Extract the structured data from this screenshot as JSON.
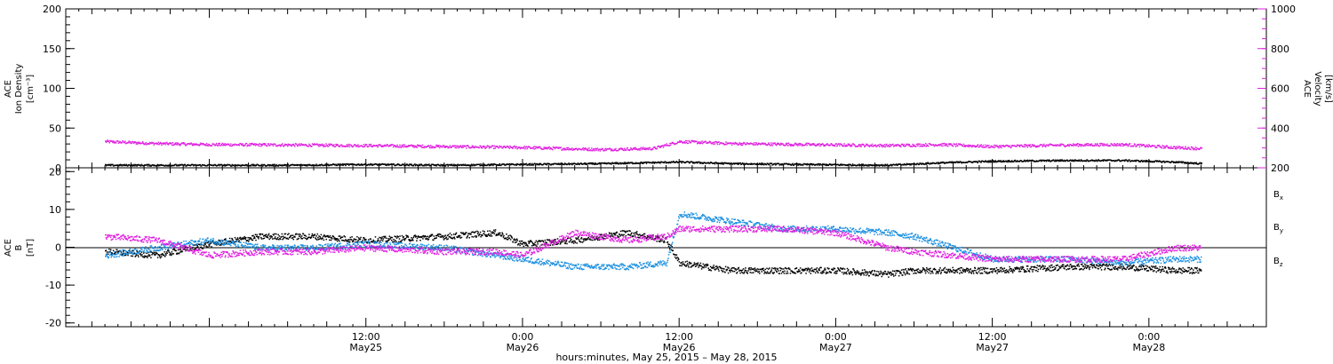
{
  "chart_data": [
    {
      "type": "scatter",
      "panel": "top",
      "ylabel_left": [
        "ACE",
        "Ion Density",
        "[cm⁻³]"
      ],
      "ylabel_right": [
        "ACE",
        "Velocity",
        "[km/s]"
      ],
      "left_ticks": [
        "0",
        "50",
        "100",
        "150",
        "200"
      ],
      "right_ticks": [
        "200",
        "400",
        "600",
        "800",
        "1000"
      ],
      "ylim_left": [
        0,
        200
      ],
      "ylim_right": [
        200,
        1000
      ],
      "colors": {
        "density": "#000000",
        "velocity": "#e020e0"
      },
      "series": [
        {
          "name": "density",
          "axis": "left",
          "x": [
            -8,
            0,
            6,
            12,
            18,
            24,
            30,
            36,
            40,
            45,
            52,
            56,
            60,
            66,
            70,
            74,
            76
          ],
          "y": [
            4,
            4,
            4,
            5,
            4,
            5,
            6,
            8,
            6,
            5,
            4,
            7,
            9,
            10,
            10,
            8,
            6
          ]
        },
        {
          "name": "velocity",
          "axis": "right",
          "x": [
            -8,
            -4,
            0,
            6,
            12,
            18,
            24,
            30,
            34,
            36,
            40,
            48,
            52,
            56,
            60,
            66,
            70,
            74,
            76
          ],
          "y": [
            335,
            325,
            320,
            318,
            315,
            310,
            305,
            295,
            300,
            335,
            325,
            318,
            315,
            320,
            310,
            318,
            320,
            305,
            300
          ]
        }
      ]
    },
    {
      "type": "scatter",
      "panel": "bottom",
      "ylabel_left": [
        "ACE",
        "B",
        "[nT]"
      ],
      "left_ticks": [
        "-20",
        "-10",
        "0",
        "10",
        "20"
      ],
      "ylim": [
        -21,
        21
      ],
      "series": [
        {
          "name": "Bₓ",
          "base": "B",
          "sub": "x",
          "color": "#000000",
          "x": [
            -8,
            -4,
            0,
            4,
            8,
            12,
            18,
            22,
            24,
            28,
            32,
            35,
            36,
            40,
            44,
            48,
            52,
            54,
            60,
            66,
            70,
            74,
            76
          ],
          "y": [
            -1,
            -2,
            1,
            3,
            3,
            2,
            3,
            4,
            1,
            2,
            4,
            2,
            -4,
            -6,
            -6,
            -6,
            -7,
            -6,
            -6,
            -5,
            -5,
            -6,
            -6
          ]
        },
        {
          "name": "Bᵧ",
          "base": "B",
          "sub": "y",
          "color": "#1a8fe0",
          "x": [
            -8,
            -4,
            0,
            4,
            8,
            12,
            18,
            22,
            24,
            28,
            32,
            35,
            36,
            40,
            44,
            48,
            52,
            54,
            60,
            66,
            70,
            74,
            76
          ],
          "y": [
            -2,
            0,
            2,
            0,
            0,
            1,
            0,
            -2,
            -3,
            -5,
            -5,
            -4,
            9,
            7,
            5,
            5,
            4,
            3,
            -3,
            -3,
            -4,
            -3,
            -3
          ]
        },
        {
          "name": "Bᶻ",
          "base": "B",
          "sub": "z",
          "color": "#e020e0",
          "x": [
            -8,
            -4,
            0,
            4,
            8,
            12,
            18,
            22,
            24,
            28,
            32,
            35,
            36,
            40,
            44,
            48,
            52,
            54,
            60,
            66,
            70,
            74,
            76
          ],
          "y": [
            3,
            2,
            -2,
            -1,
            -1,
            0,
            -1,
            -1,
            -2,
            4,
            2,
            3,
            5,
            5,
            5,
            4,
            0,
            -1,
            -3,
            -3,
            -3,
            0,
            0
          ]
        }
      ]
    }
  ],
  "x_axis": {
    "xlim": [
      -11,
      81
    ],
    "tick_hours": [
      12,
      24,
      36,
      48,
      60,
      72
    ],
    "tick_labels": [
      {
        "time": "12:00",
        "date": "May25"
      },
      {
        "time": "0:00",
        "date": "May26"
      },
      {
        "time": "12:00",
        "date": "May26"
      },
      {
        "time": "0:00",
        "date": "May27"
      },
      {
        "time": "12:00",
        "date": "May27"
      },
      {
        "time": "0:00",
        "date": "May28"
      }
    ],
    "title": "hours:minutes, May 25, 2015 – May 28, 2015"
  }
}
